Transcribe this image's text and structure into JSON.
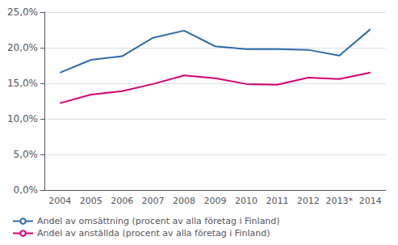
{
  "chart_data": {
    "type": "line",
    "categories": [
      "2004",
      "2005",
      "2006",
      "2007",
      "2008",
      "2009",
      "2010",
      "2011",
      "2012",
      "2013*",
      "2014"
    ],
    "series": [
      {
        "name": "Andel av omsättning (procent av alla företag i Finland)",
        "color": "#2e6bab",
        "values": [
          16.5,
          18.3,
          18.8,
          21.4,
          22.4,
          20.2,
          19.8,
          19.8,
          19.7,
          18.9,
          22.6
        ]
      },
      {
        "name": "Andel av anställda (procent av alla företag i Finland)",
        "color": "#d4006e",
        "values": [
          12.2,
          13.4,
          13.9,
          14.9,
          16.1,
          15.7,
          14.9,
          14.8,
          15.8,
          15.6,
          16.5
        ]
      }
    ],
    "ylim": [
      0,
      25
    ],
    "yticks": [
      {
        "value": 0,
        "label": "0,0%"
      },
      {
        "value": 5,
        "label": "5,0%"
      },
      {
        "value": 10,
        "label": "10,0%"
      },
      {
        "value": 15,
        "label": "15,0%"
      },
      {
        "value": 20,
        "label": "20,0%"
      },
      {
        "value": 25,
        "label": "25,0%"
      }
    ],
    "grid": true,
    "legend": "lower left"
  }
}
